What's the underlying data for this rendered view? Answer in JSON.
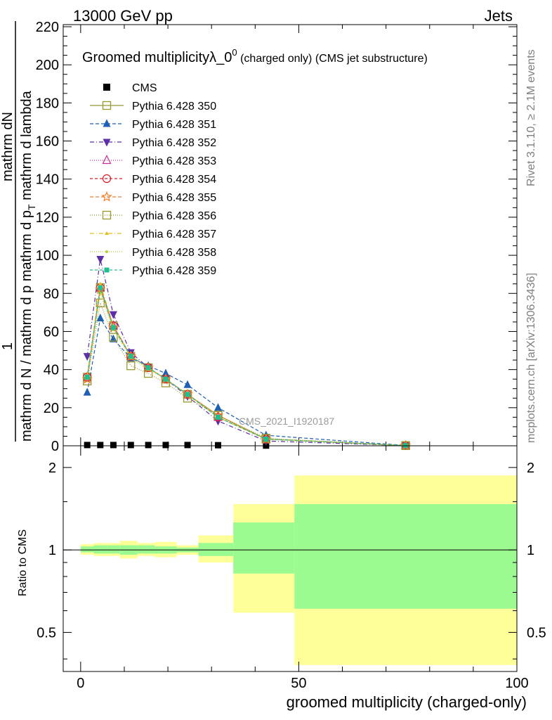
{
  "header": {
    "left": "13000 GeV pp",
    "right": "Jets"
  },
  "side_texts": {
    "rivet": "Rivet 3.1.10, ≥ 2.1M events",
    "mcplots": "mcplots.cern.ch [arXiv:1306.3436]"
  },
  "analysis_label": "CMS_2021_I1920187",
  "chart_data": [
    {
      "type": "line",
      "title_main": "Groomed multiplicityλ_0",
      "title_sup": "0",
      "title_sub": " (charged only) (CMS jet substructure)",
      "ylabel_top": "1",
      "ylabel_numer": "mathrm dN",
      "ylabel_denom": "mathrm d N / mathrm d p",
      "ylabel_denom2": "mathrm d p",
      "ylabel_denom_sub": "T",
      "ylabel_denom_tail": " mathrm d lambda",
      "ylim": [
        0,
        220
      ],
      "yticks": [
        "0",
        "20",
        "40",
        "60",
        "80",
        "100",
        "120",
        "140",
        "160",
        "180",
        "200",
        "220"
      ],
      "xlim": [
        -4,
        100
      ],
      "legend_placement": "top-left",
      "x": [
        1.5,
        4.5,
        7.5,
        11.5,
        15.5,
        19.5,
        24.5,
        31.5,
        42.5,
        74.5
      ],
      "series": [
        {
          "name": "CMS",
          "color": "#000000",
          "marker": "square-filled",
          "dash": "",
          "values": [
            0.4,
            0.4,
            0.4,
            0.4,
            0.4,
            0.4,
            0.4,
            0.3,
            0.1,
            0.0
          ]
        },
        {
          "name": "Pythia 6.428 350",
          "color": "#999933",
          "marker": "square-open",
          "dash": "",
          "values": [
            36,
            83,
            63,
            47,
            41,
            35,
            27,
            16,
            3.5,
            0.1
          ]
        },
        {
          "name": "Pythia 6.428 351",
          "color": "#1f5fb4",
          "marker": "triangle-up-filled",
          "dash": "5,3",
          "values": [
            28,
            67,
            56,
            46,
            42,
            38,
            32,
            20,
            5.5,
            0.2
          ]
        },
        {
          "name": "Pythia 6.428 352",
          "color": "#5b2fa8",
          "marker": "triangle-down-filled",
          "dash": "6,3,1,3",
          "values": [
            47,
            98,
            69,
            49,
            41,
            35,
            26,
            13,
            2.5,
            0.1
          ]
        },
        {
          "name": "Pythia 6.428 353",
          "color": "#c0308f",
          "marker": "triangle-up-open",
          "dash": "1,2",
          "values": [
            36,
            83,
            63,
            47,
            41,
            35,
            27,
            15,
            3.5,
            0.1
          ]
        },
        {
          "name": "Pythia 6.428 354",
          "color": "#d61e2a",
          "marker": "circle-open",
          "dash": "4,3",
          "values": [
            36,
            83,
            63,
            47,
            41,
            35,
            27,
            15,
            3.5,
            0.1
          ]
        },
        {
          "name": "Pythia 6.428 355",
          "color": "#f07f28",
          "marker": "star-open",
          "dash": "5,3",
          "values": [
            35,
            82,
            62,
            47,
            41,
            35,
            27,
            16,
            3.5,
            0.1
          ]
        },
        {
          "name": "Pythia 6.428 356",
          "color": "#999933",
          "marker": "square-open",
          "dash": "1,2",
          "values": [
            34,
            75,
            57,
            42,
            38,
            33,
            25,
            16,
            4.0,
            0.1
          ]
        },
        {
          "name": "Pythia 6.428 357",
          "color": "#e0c020",
          "marker": "tri-small",
          "dash": "6,3,1,3",
          "values": [
            37,
            85,
            63,
            47,
            41,
            35,
            27,
            15,
            3.5,
            0.1
          ]
        },
        {
          "name": "Pythia 6.428 358",
          "color": "#b5d23a",
          "marker": "dot-small",
          "dash": "1,2",
          "values": [
            36,
            80,
            61,
            46,
            40,
            35,
            27,
            15,
            3.5,
            0.1
          ]
        },
        {
          "name": "Pythia 6.428 359",
          "color": "#1fbf8f",
          "marker": "square-filled-small",
          "dash": "4,3",
          "values": [
            36,
            83,
            62,
            47,
            41,
            35,
            27,
            15,
            3.5,
            0.1
          ]
        }
      ]
    },
    {
      "type": "area",
      "ylabel": "Ratio to CMS",
      "xlabel": "groomed multiplicity (charged-only)",
      "xlim": [
        -4,
        100
      ],
      "xticks": [
        "0",
        "50",
        "100"
      ],
      "ylim": [
        0.36,
        2.4
      ],
      "yticks": [
        "0.5",
        "1",
        "2"
      ],
      "bins": [
        [
          0,
          3
        ],
        [
          3,
          6
        ],
        [
          6,
          9
        ],
        [
          9,
          13
        ],
        [
          13,
          17
        ],
        [
          17,
          22
        ],
        [
          22,
          27
        ],
        [
          27,
          35
        ],
        [
          35,
          49
        ],
        [
          49,
          100
        ]
      ],
      "stat_band": [
        [
          0.98,
          1.03
        ],
        [
          0.97,
          1.04
        ],
        [
          0.97,
          1.04
        ],
        [
          0.96,
          1.04
        ],
        [
          0.97,
          1.04
        ],
        [
          0.97,
          1.03
        ],
        [
          0.98,
          1.02
        ],
        [
          0.95,
          1.06
        ],
        [
          0.82,
          1.26
        ],
        [
          0.61,
          1.47
        ]
      ],
      "total_band": [
        [
          0.96,
          1.05
        ],
        [
          0.95,
          1.06
        ],
        [
          0.95,
          1.06
        ],
        [
          0.93,
          1.08
        ],
        [
          0.95,
          1.06
        ],
        [
          0.94,
          1.07
        ],
        [
          0.96,
          1.04
        ],
        [
          0.9,
          1.13
        ],
        [
          0.59,
          1.47
        ],
        [
          0.38,
          1.87
        ]
      ],
      "colors": {
        "stat": "#9bfb90",
        "total": "#ffff99",
        "reference_line": "#000000"
      }
    }
  ]
}
